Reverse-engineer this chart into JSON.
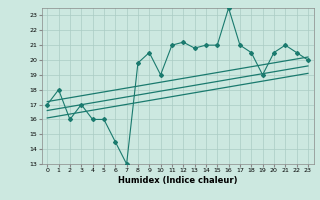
{
  "xlabel": "Humidex (Indice chaleur)",
  "bg_color": "#cce8e0",
  "line_color": "#1a7a6e",
  "grid_color": "#aaccc4",
  "xlim": [
    -0.5,
    23.5
  ],
  "ylim": [
    13,
    23.5
  ],
  "yticks": [
    13,
    14,
    15,
    16,
    17,
    18,
    19,
    20,
    21,
    22,
    23
  ],
  "xticks": [
    0,
    1,
    2,
    3,
    4,
    5,
    6,
    7,
    8,
    9,
    10,
    11,
    12,
    13,
    14,
    15,
    16,
    17,
    18,
    19,
    20,
    21,
    22,
    23
  ],
  "data_x": [
    0,
    1,
    2,
    3,
    4,
    5,
    6,
    7,
    8,
    9,
    10,
    11,
    12,
    13,
    14,
    15,
    16,
    17,
    18,
    19,
    20,
    21,
    22,
    23
  ],
  "data_y": [
    17.0,
    18.0,
    16.0,
    17.0,
    16.0,
    16.0,
    14.5,
    13.0,
    19.8,
    20.5,
    19.0,
    21.0,
    21.2,
    20.8,
    21.0,
    21.0,
    23.5,
    21.0,
    20.5,
    19.0,
    20.5,
    21.0,
    20.5,
    20.0
  ],
  "reg_lines": [
    {
      "x0": 0,
      "y0": 17.2,
      "x1": 23,
      "y1": 20.2
    },
    {
      "x0": 0,
      "y0": 16.6,
      "x1": 23,
      "y1": 19.6
    },
    {
      "x0": 0,
      "y0": 16.1,
      "x1": 23,
      "y1": 19.1
    }
  ]
}
